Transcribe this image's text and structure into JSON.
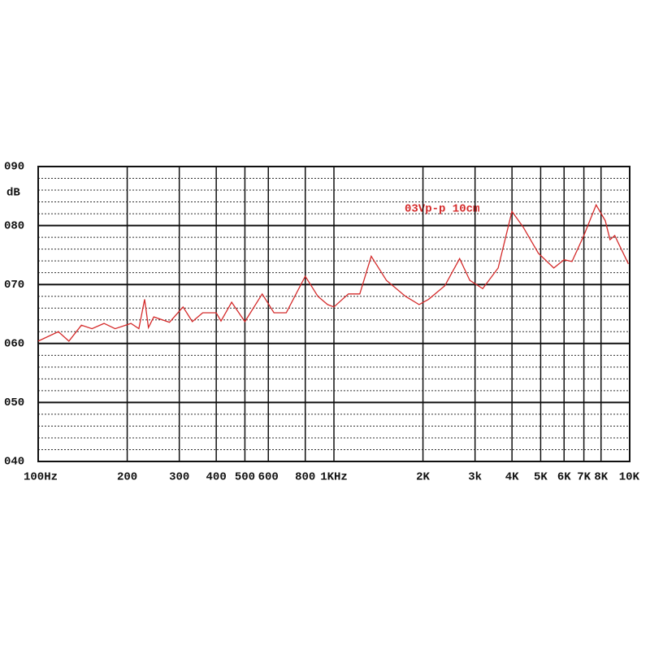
{
  "chart_data": {
    "type": "line",
    "y_label": "dB",
    "annotation": "03Vp-p 10cm",
    "x_scale": "log",
    "grid": true,
    "xlim": [
      100,
      10000
    ],
    "ylim": [
      40,
      90
    ],
    "xticks": [
      {
        "value": 100,
        "label": "100Hz"
      },
      200,
      300,
      400,
      500,
      600,
      800,
      {
        "value": 1000,
        "label": "1KHz"
      },
      {
        "value": 2000,
        "label": "2K"
      },
      {
        "value": 3000,
        "label": "3k"
      },
      {
        "value": 4000,
        "label": "4K"
      },
      {
        "value": 5000,
        "label": "5K"
      },
      {
        "value": 6000,
        "label": "6K"
      },
      {
        "value": 7000,
        "label": "7K"
      },
      {
        "value": 8000,
        "label": "8K"
      },
      {
        "value": 10000,
        "label": "10K"
      }
    ],
    "yticks": [
      {
        "value": 40,
        "label": "040"
      },
      {
        "value": 50,
        "label": "050"
      },
      {
        "value": 60,
        "label": "060"
      },
      {
        "value": 70,
        "label": "070"
      },
      {
        "value": 80,
        "label": "080"
      },
      {
        "value": 90,
        "label": "090"
      }
    ],
    "series": [
      {
        "color": "#d42a2a",
        "x": [
          100,
          117,
          127,
          140,
          152,
          167,
          182,
          206,
          219,
          229,
          236,
          246,
          278,
          309,
          332,
          360,
          400,
          415,
          451,
          500,
          572,
          627,
          690,
          800,
          882,
          952,
          1000,
          1119,
          1223,
          1337,
          1505,
          1745,
          1940,
          2090,
          2372,
          2660,
          2880,
          3185,
          3590,
          4000,
          4370,
          4910,
          5540,
          6000,
          6380,
          7000,
          7700,
          8270,
          8580,
          8900,
          9900
        ],
        "values": [
          60.4,
          62,
          60.4,
          63.1,
          62.5,
          63.4,
          62.5,
          63.4,
          62.5,
          67.5,
          62.7,
          64.5,
          63.6,
          66.2,
          63.7,
          65.2,
          65.2,
          63.8,
          67,
          63.7,
          68.4,
          65.2,
          65.2,
          71.4,
          68,
          66.6,
          66.2,
          68.4,
          68.4,
          74.8,
          70.7,
          68,
          66.6,
          67.5,
          69.8,
          74.4,
          70.7,
          69.3,
          72.8,
          82.4,
          79.7,
          75.3,
          72.8,
          74.2,
          73.9,
          78.3,
          83.5,
          80.8,
          77.6,
          78.3,
          73.5
        ]
      }
    ]
  }
}
